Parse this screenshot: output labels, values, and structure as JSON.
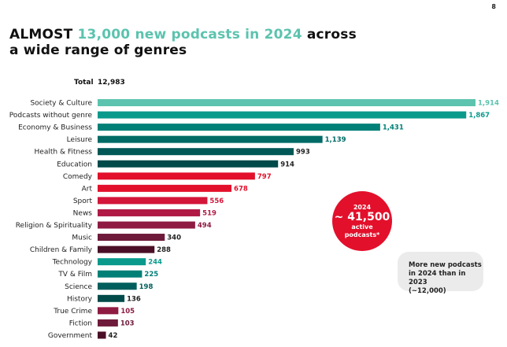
{
  "page_number": "8",
  "title": {
    "part1": "ALMOST ",
    "highlight": "13,000 new podcasts in 2024",
    "part2": " across",
    "line2": "a wide range of genres"
  },
  "total": {
    "label": "Total",
    "value": "12,983"
  },
  "callout_circle": {
    "year": "2024",
    "value": "~ 41,500",
    "line1": "active",
    "line2": "podcasts*"
  },
  "note": {
    "line1": "More new podcasts",
    "line2": "in 2024 than in 2023",
    "line3": "(~12,000)"
  },
  "colors": {
    "mint": "#5cc3ae",
    "teal": "#008a80",
    "dark_teal": "#005f5c",
    "red": "#e3102b",
    "crimson": "#b01a45",
    "maroon": "#6e1a3a",
    "dark_maroon": "#4a0f26"
  },
  "chart_data": {
    "type": "bar",
    "orientation": "horizontal",
    "categories": [
      "Society & Culture",
      "Podcasts without genre",
      "Economy & Business",
      "Leisure",
      "Health & Fitness",
      "Education",
      "Comedy",
      "Art",
      "Sport",
      "News",
      "Religion & Spirituality",
      "Music",
      "Children & Family",
      "Technology",
      "TV & Film",
      "Science",
      "History",
      "True Crime",
      "Fiction",
      "Government"
    ],
    "values": [
      1914,
      1867,
      1431,
      1139,
      993,
      914,
      797,
      678,
      556,
      519,
      494,
      340,
      288,
      244,
      225,
      198,
      136,
      105,
      103,
      42
    ],
    "value_labels": [
      "1,914",
      "1,867",
      "1,431",
      "1,139",
      "993",
      "914",
      "797",
      "678",
      "556",
      "519",
      "494",
      "340",
      "288",
      "244",
      "225",
      "198",
      "136",
      "105",
      "103",
      "42"
    ],
    "bar_colors": [
      "#5cc3ae",
      "#0a9a8c",
      "#008077",
      "#006b66",
      "#005856",
      "#004a4a",
      "#e3102b",
      "#e3102b",
      "#d4163a",
      "#b01a45",
      "#8f1b42",
      "#6e1a3a",
      "#4a0f26",
      "#0a9a8c",
      "#008077",
      "#005f5c",
      "#004a4a",
      "#8f1b42",
      "#6e1a3a",
      "#4a0f26"
    ],
    "label_colors": [
      "#5cc3ae",
      "#0a9a8c",
      "#008077",
      "#006b66",
      "#222222",
      "#222222",
      "#e3102b",
      "#e3102b",
      "#d4163a",
      "#b01a45",
      "#8f1b42",
      "#222222",
      "#222222",
      "#0a9a8c",
      "#008077",
      "#005f5c",
      "#222222",
      "#8f1b42",
      "#6e1a3a",
      "#222222"
    ],
    "xlim": [
      0,
      1914
    ],
    "grid": false,
    "legend": "none"
  }
}
